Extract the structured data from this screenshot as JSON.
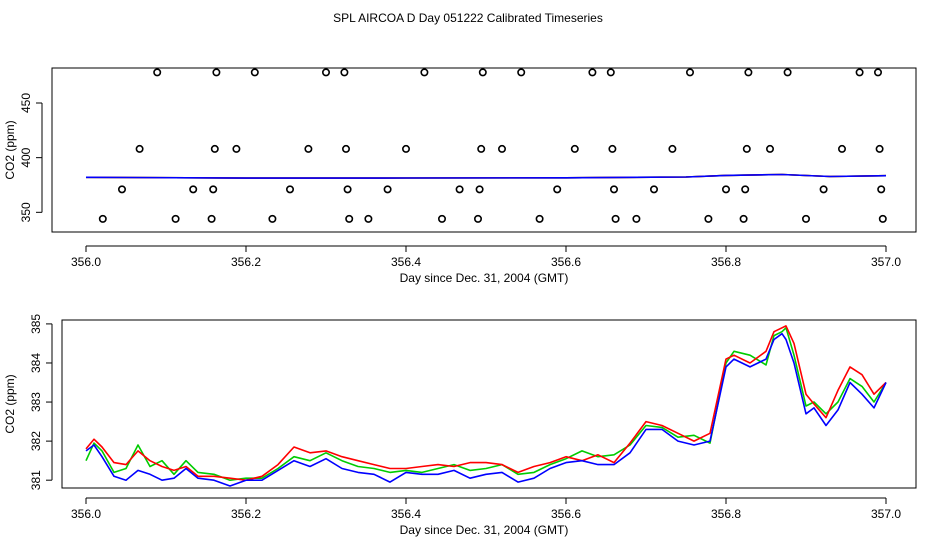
{
  "page": {
    "title": "SPL AIRCOA D  Day 051222  Calibrated Timeseries"
  },
  "chart_data": [
    {
      "type": "scatter",
      "xlabel": "Day since Dec. 31, 2004 (GMT)",
      "ylabel": "CO2 (ppm)",
      "xlim": [
        356.0,
        357.0
      ],
      "ylim": [
        332,
        482
      ],
      "x_ticks": [
        356.0,
        356.2,
        356.4,
        356.6,
        356.8,
        357.0
      ],
      "x_tick_labels": [
        "356.0",
        "356.2",
        "356.4",
        "356.6",
        "356.8",
        "357.0"
      ],
      "y_ticks": [
        350,
        400,
        450
      ],
      "y_tick_labels": [
        "350",
        "400",
        "450"
      ],
      "grid": false,
      "calibration_points": [
        {
          "x": 356.021,
          "y": 344
        },
        {
          "x": 356.045,
          "y": 371
        },
        {
          "x": 356.067,
          "y": 408
        },
        {
          "x": 356.089,
          "y": 478
        },
        {
          "x": 356.112,
          "y": 344
        },
        {
          "x": 356.134,
          "y": 371
        },
        {
          "x": 356.157,
          "y": 344
        },
        {
          "x": 356.159,
          "y": 371
        },
        {
          "x": 356.161,
          "y": 408
        },
        {
          "x": 356.163,
          "y": 478
        },
        {
          "x": 356.188,
          "y": 408
        },
        {
          "x": 356.211,
          "y": 478
        },
        {
          "x": 356.233,
          "y": 344
        },
        {
          "x": 356.255,
          "y": 371
        },
        {
          "x": 356.278,
          "y": 408
        },
        {
          "x": 356.3,
          "y": 478
        },
        {
          "x": 356.323,
          "y": 478
        },
        {
          "x": 356.325,
          "y": 408
        },
        {
          "x": 356.327,
          "y": 371
        },
        {
          "x": 356.329,
          "y": 344
        },
        {
          "x": 356.353,
          "y": 344
        },
        {
          "x": 356.377,
          "y": 371
        },
        {
          "x": 356.4,
          "y": 408
        },
        {
          "x": 356.423,
          "y": 478
        },
        {
          "x": 356.445,
          "y": 344
        },
        {
          "x": 356.467,
          "y": 371
        },
        {
          "x": 356.49,
          "y": 344
        },
        {
          "x": 356.492,
          "y": 371
        },
        {
          "x": 356.494,
          "y": 408
        },
        {
          "x": 356.496,
          "y": 478
        },
        {
          "x": 356.52,
          "y": 408
        },
        {
          "x": 356.544,
          "y": 478
        },
        {
          "x": 356.567,
          "y": 344
        },
        {
          "x": 356.589,
          "y": 371
        },
        {
          "x": 356.611,
          "y": 408
        },
        {
          "x": 356.633,
          "y": 478
        },
        {
          "x": 356.656,
          "y": 478
        },
        {
          "x": 356.658,
          "y": 408
        },
        {
          "x": 356.66,
          "y": 371
        },
        {
          "x": 356.662,
          "y": 344
        },
        {
          "x": 356.688,
          "y": 344
        },
        {
          "x": 356.71,
          "y": 371
        },
        {
          "x": 356.733,
          "y": 408
        },
        {
          "x": 356.755,
          "y": 478
        },
        {
          "x": 356.778,
          "y": 344
        },
        {
          "x": 356.8,
          "y": 371
        },
        {
          "x": 356.822,
          "y": 344
        },
        {
          "x": 356.824,
          "y": 371
        },
        {
          "x": 356.826,
          "y": 408
        },
        {
          "x": 356.828,
          "y": 478
        },
        {
          "x": 356.855,
          "y": 408
        },
        {
          "x": 356.877,
          "y": 478
        },
        {
          "x": 356.9,
          "y": 344
        },
        {
          "x": 356.922,
          "y": 371
        },
        {
          "x": 356.945,
          "y": 408
        },
        {
          "x": 356.967,
          "y": 478
        },
        {
          "x": 356.99,
          "y": 478
        },
        {
          "x": 356.992,
          "y": 408
        },
        {
          "x": 356.994,
          "y": 371
        },
        {
          "x": 356.996,
          "y": 344
        }
      ],
      "series": [
        {
          "color": "#00cc00",
          "x": [
            356.0,
            356.2,
            356.4,
            356.6,
            356.75,
            356.8,
            356.87,
            356.93,
            357.0
          ],
          "y": [
            382.0,
            381.3,
            381.4,
            381.6,
            382.3,
            383.8,
            384.6,
            382.8,
            383.5
          ]
        },
        {
          "color": "#ff0000",
          "x": [
            356.0,
            356.2,
            356.4,
            356.6,
            356.75,
            356.8,
            356.87,
            356.93,
            357.0
          ],
          "y": [
            382.0,
            381.3,
            381.4,
            381.6,
            382.3,
            383.8,
            384.6,
            382.8,
            383.5
          ]
        },
        {
          "color": "#0000ff",
          "x": [
            356.0,
            356.2,
            356.4,
            356.6,
            356.75,
            356.8,
            356.87,
            356.93,
            357.0
          ],
          "y": [
            382.0,
            381.3,
            381.4,
            381.6,
            382.3,
            383.8,
            384.6,
            382.8,
            383.5
          ]
        }
      ]
    },
    {
      "type": "line",
      "xlabel": "Day since Dec. 31, 2004 (GMT)",
      "ylabel": "CO2 (ppm)",
      "xlim": [
        356.0,
        357.0
      ],
      "ylim": [
        380.8,
        385.1
      ],
      "x_ticks": [
        356.0,
        356.2,
        356.4,
        356.6,
        356.8,
        357.0
      ],
      "x_tick_labels": [
        "356.0",
        "356.2",
        "356.4",
        "356.6",
        "356.8",
        "357.0"
      ],
      "y_ticks": [
        381,
        382,
        383,
        384,
        385
      ],
      "y_tick_labels": [
        "381",
        "382",
        "383",
        "384",
        "385"
      ],
      "grid": false,
      "series": [
        {
          "color": "#00cc00",
          "x": [
            356.0,
            356.01,
            356.02,
            356.035,
            356.05,
            356.065,
            356.08,
            356.095,
            356.11,
            356.125,
            356.14,
            356.16,
            356.18,
            356.2,
            356.22,
            356.24,
            356.26,
            356.28,
            356.3,
            356.32,
            356.34,
            356.36,
            356.38,
            356.4,
            356.42,
            356.44,
            356.46,
            356.48,
            356.5,
            356.52,
            356.54,
            356.56,
            356.58,
            356.6,
            356.62,
            356.64,
            356.66,
            356.68,
            356.7,
            356.72,
            356.74,
            356.76,
            356.78,
            356.8,
            356.81,
            356.83,
            356.85,
            356.86,
            356.87,
            356.875,
            356.885,
            356.9,
            356.91,
            356.925,
            356.94,
            356.955,
            356.97,
            356.985,
            357.0
          ],
          "y": [
            381.5,
            381.95,
            381.75,
            381.2,
            381.3,
            381.9,
            381.35,
            381.5,
            381.15,
            381.5,
            381.2,
            381.15,
            381.0,
            381.05,
            381.05,
            381.3,
            381.6,
            381.5,
            381.7,
            381.5,
            381.35,
            381.3,
            381.2,
            381.25,
            381.2,
            381.3,
            381.4,
            381.25,
            381.3,
            381.4,
            381.15,
            381.2,
            381.4,
            381.55,
            381.75,
            381.6,
            381.65,
            381.9,
            382.4,
            382.35,
            382.1,
            382.15,
            381.95,
            384.0,
            384.3,
            384.2,
            383.95,
            384.7,
            384.8,
            384.9,
            384.2,
            382.9,
            383.0,
            382.7,
            383.0,
            383.6,
            383.4,
            383.0,
            383.5
          ]
        },
        {
          "color": "#ff0000",
          "x": [
            356.0,
            356.01,
            356.02,
            356.035,
            356.05,
            356.065,
            356.08,
            356.095,
            356.11,
            356.125,
            356.14,
            356.16,
            356.18,
            356.2,
            356.22,
            356.24,
            356.26,
            356.28,
            356.3,
            356.32,
            356.34,
            356.36,
            356.38,
            356.4,
            356.42,
            356.44,
            356.46,
            356.48,
            356.5,
            356.52,
            356.54,
            356.56,
            356.58,
            356.6,
            356.62,
            356.64,
            356.66,
            356.68,
            356.7,
            356.72,
            356.74,
            356.76,
            356.78,
            356.8,
            356.81,
            356.83,
            356.85,
            356.86,
            356.87,
            356.875,
            356.885,
            356.9,
            356.91,
            356.925,
            356.94,
            356.955,
            356.97,
            356.985,
            357.0
          ],
          "y": [
            381.8,
            382.05,
            381.85,
            381.45,
            381.4,
            381.75,
            381.5,
            381.35,
            381.25,
            381.35,
            381.1,
            381.1,
            381.05,
            381.0,
            381.1,
            381.4,
            381.85,
            381.7,
            381.75,
            381.6,
            381.5,
            381.4,
            381.3,
            381.3,
            381.35,
            381.4,
            381.35,
            381.45,
            381.45,
            381.4,
            381.2,
            381.35,
            381.45,
            381.6,
            381.5,
            381.65,
            381.45,
            381.95,
            382.5,
            382.4,
            382.2,
            382.0,
            382.2,
            384.1,
            384.2,
            384.0,
            384.3,
            384.8,
            384.9,
            384.95,
            384.5,
            383.2,
            382.95,
            382.6,
            383.3,
            383.9,
            383.7,
            383.2,
            383.5
          ]
        },
        {
          "color": "#0000ff",
          "x": [
            356.0,
            356.01,
            356.02,
            356.035,
            356.05,
            356.065,
            356.08,
            356.095,
            356.11,
            356.125,
            356.14,
            356.16,
            356.18,
            356.2,
            356.22,
            356.24,
            356.26,
            356.28,
            356.3,
            356.32,
            356.34,
            356.36,
            356.38,
            356.4,
            356.42,
            356.44,
            356.46,
            356.48,
            356.5,
            356.52,
            356.54,
            356.56,
            356.58,
            356.6,
            356.62,
            356.64,
            356.66,
            356.68,
            356.7,
            356.72,
            356.74,
            356.76,
            356.78,
            356.8,
            356.81,
            356.83,
            356.85,
            356.86,
            356.87,
            356.875,
            356.885,
            356.9,
            356.91,
            356.925,
            356.94,
            356.955,
            356.97,
            356.985,
            357.0
          ],
          "y": [
            381.75,
            381.9,
            381.6,
            381.1,
            381.0,
            381.25,
            381.15,
            381.0,
            381.05,
            381.3,
            381.05,
            381.0,
            380.85,
            381.0,
            381.0,
            381.25,
            381.5,
            381.35,
            381.55,
            381.3,
            381.2,
            381.15,
            380.95,
            381.2,
            381.15,
            381.15,
            381.25,
            381.05,
            381.15,
            381.2,
            380.95,
            381.05,
            381.3,
            381.45,
            381.5,
            381.4,
            381.4,
            381.7,
            382.3,
            382.3,
            382.0,
            381.9,
            382.0,
            383.9,
            384.1,
            383.9,
            384.1,
            384.6,
            384.75,
            384.6,
            384.0,
            382.7,
            382.85,
            382.4,
            382.8,
            383.5,
            383.2,
            382.85,
            383.5
          ]
        }
      ]
    }
  ]
}
